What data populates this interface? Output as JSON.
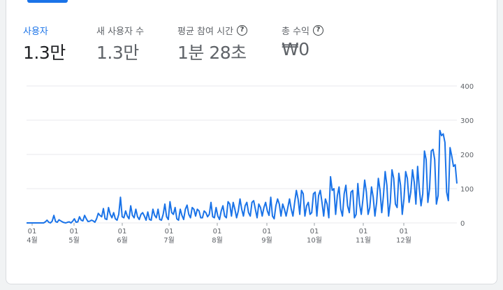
{
  "metrics": [
    {
      "label": "사용자",
      "value": "1.3만",
      "help": false
    },
    {
      "label": "새 사용자 수",
      "value": "1.3만",
      "help": false
    },
    {
      "label": "평균 참여 시간",
      "value": "1분 28초",
      "help": true
    },
    {
      "label": "총 수익",
      "value": "₩0",
      "help": true
    }
  ],
  "help_glyph": "?",
  "colors": {
    "line": "#1a73e8",
    "grid": "#e8eaed",
    "active": "#1a73e8"
  },
  "chart_data": {
    "type": "line",
    "y_ticks": [
      "400",
      "300",
      "200",
      "100",
      "0"
    ],
    "ylim": [
      0,
      400
    ],
    "x_ticks": [
      {
        "day": "01",
        "month": "4월"
      },
      {
        "day": "01",
        "month": "5월"
      },
      {
        "day": "01",
        "month": "6월"
      },
      {
        "day": "01",
        "month": "7월"
      },
      {
        "day": "01",
        "month": "8월"
      },
      {
        "day": "01",
        "month": "9월"
      },
      {
        "day": "01",
        "month": "10월"
      },
      {
        "day": "01",
        "month": "11월"
      },
      {
        "day": "01",
        "month": "12월"
      }
    ],
    "series": [
      {
        "values": [
          0,
          0,
          0,
          0,
          0,
          0,
          0,
          0,
          0,
          0,
          0,
          3,
          8,
          2,
          0,
          5,
          22,
          4,
          2,
          9,
          6,
          3,
          1,
          0,
          2,
          3,
          0,
          5,
          12,
          2,
          3,
          18,
          8,
          6,
          22,
          12,
          4,
          5,
          8,
          6,
          2,
          12,
          28,
          22,
          18,
          42,
          12,
          10,
          45,
          25,
          15,
          30,
          12,
          8,
          25,
          75,
          18,
          15,
          35,
          20,
          12,
          50,
          22,
          15,
          40,
          18,
          10,
          25,
          30,
          20,
          8,
          32,
          10,
          8,
          40,
          22,
          15,
          40,
          10,
          8,
          25,
          55,
          18,
          10,
          62,
          30,
          25,
          45,
          12,
          8,
          40,
          22,
          10,
          40,
          52,
          25,
          15,
          45,
          40,
          20,
          40,
          35,
          15,
          15,
          35,
          30,
          18,
          25,
          60,
          18,
          15,
          45,
          20,
          10,
          35,
          50,
          20,
          15,
          62,
          55,
          20,
          60,
          40,
          15,
          35,
          70,
          40,
          20,
          50,
          60,
          30,
          20,
          60,
          65,
          40,
          15,
          55,
          45,
          20,
          45,
          60,
          35,
          22,
          75,
          20,
          12,
          50,
          70,
          55,
          20,
          55,
          40,
          20,
          45,
          70,
          40,
          20,
          60,
          95,
          70,
          25,
          95,
          85,
          20,
          50,
          60,
          25,
          30,
          85,
          90,
          20,
          80,
          95,
          60,
          20,
          70,
          55,
          15,
          135,
          95,
          100,
          25,
          80,
          105,
          40,
          20,
          85,
          110,
          50,
          30,
          90,
          95,
          15,
          25,
          115,
          55,
          25,
          70,
          125,
          90,
          25,
          45,
          105,
          75,
          20,
          60,
          130,
          95,
          30,
          80,
          150,
          110,
          20,
          60,
          155,
          130,
          55,
          45,
          145,
          110,
          25,
          70,
          150,
          130,
          60,
          90,
          155,
          120,
          55,
          165,
          100,
          50,
          85,
          210,
          185,
          60,
          100,
          210,
          215,
          185,
          55,
          80,
          270,
          255,
          260,
          235,
          90,
          65,
          220,
          195,
          165,
          170,
          115
        ]
      }
    ]
  }
}
